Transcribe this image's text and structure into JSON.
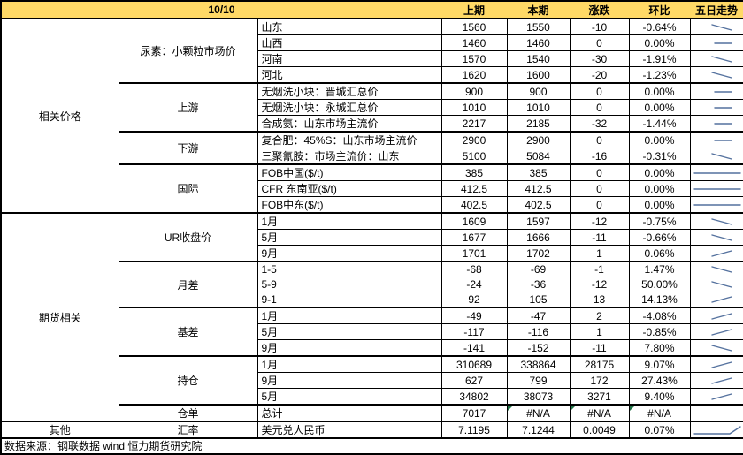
{
  "title_date": "10/10",
  "columns": [
    "上期",
    "本期",
    "涨跌",
    "环比",
    "五日走势"
  ],
  "sections": [
    {
      "label": "相关价格",
      "groups": [
        {
          "label": "尿素：小颗粒市场价",
          "rows": [
            {
              "item": "山东",
              "prev": "1560",
              "curr": "1550",
              "chg": "-10",
              "pct": "-0.64%",
              "trend": "down"
            },
            {
              "item": "山西",
              "prev": "1460",
              "curr": "1460",
              "chg": "0",
              "pct": "0.00%",
              "trend": "flat"
            },
            {
              "item": "河南",
              "prev": "1570",
              "curr": "1540",
              "chg": "-30",
              "pct": "-1.91%",
              "trend": "down"
            },
            {
              "item": "河北",
              "prev": "1620",
              "curr": "1600",
              "chg": "-20",
              "pct": "-1.23%",
              "trend": "down"
            }
          ]
        },
        {
          "label": "上游",
          "rows": [
            {
              "item": "无烟洗小块：晋城汇总价",
              "prev": "900",
              "curr": "900",
              "chg": "0",
              "pct": "0.00%",
              "trend": "flat"
            },
            {
              "item": "无烟洗小块：永城汇总价",
              "prev": "1010",
              "curr": "1010",
              "chg": "0",
              "pct": "0.00%",
              "trend": "flat"
            },
            {
              "item": "合成氨：山东市场主流价",
              "prev": "2217",
              "curr": "2185",
              "chg": "-32",
              "pct": "-1.44%",
              "trend": "flat"
            }
          ]
        },
        {
          "label": "下游",
          "rows": [
            {
              "item": "复合肥：45%S：山东市场主流价",
              "prev": "2900",
              "curr": "2900",
              "chg": "0",
              "pct": "0.00%",
              "trend": "flat"
            },
            {
              "item": "三聚氰胺：市场主流价：山东",
              "prev": "5100",
              "curr": "5084",
              "chg": "-16",
              "pct": "-0.31%",
              "trend": "down"
            }
          ]
        },
        {
          "label": "国际",
          "rows": [
            {
              "item": "FOB中国($/t)",
              "prev": "385",
              "curr": "385",
              "chg": "0",
              "pct": "0.00%",
              "trend": "flat-long"
            },
            {
              "item": "CFR 东南亚($/t)",
              "prev": "412.5",
              "curr": "412.5",
              "chg": "0",
              "pct": "0.00%",
              "trend": "flat-long"
            },
            {
              "item": "FOB中东($/t)",
              "prev": "402.5",
              "curr": "402.5",
              "chg": "0",
              "pct": "0.00%",
              "trend": "flat-long"
            }
          ]
        }
      ]
    },
    {
      "label": "期货相关",
      "groups": [
        {
          "label": "UR收盘价",
          "rows": [
            {
              "item": "1月",
              "prev": "1609",
              "curr": "1597",
              "chg": "-12",
              "pct": "-0.75%",
              "trend": "down"
            },
            {
              "item": "5月",
              "prev": "1677",
              "curr": "1666",
              "chg": "-11",
              "pct": "-0.66%",
              "trend": "down"
            },
            {
              "item": "9月",
              "prev": "1701",
              "curr": "1702",
              "chg": "1",
              "pct": "0.06%",
              "trend": "up"
            }
          ]
        },
        {
          "label": "月差",
          "rows": [
            {
              "item": "1-5",
              "prev": "-68",
              "curr": "-69",
              "chg": "-1",
              "pct": "1.47%",
              "trend": "down"
            },
            {
              "item": "5-9",
              "prev": "-24",
              "curr": "-36",
              "chg": "-12",
              "pct": "50.00%",
              "trend": "down"
            },
            {
              "item": "9-1",
              "prev": "92",
              "curr": "105",
              "chg": "13",
              "pct": "14.13%",
              "trend": "up"
            }
          ]
        },
        {
          "label": "基差",
          "rows": [
            {
              "item": "1月",
              "prev": "-49",
              "curr": "-47",
              "chg": "2",
              "pct": "-4.08%",
              "trend": "up"
            },
            {
              "item": "5月",
              "prev": "-117",
              "curr": "-116",
              "chg": "1",
              "pct": "-0.85%",
              "trend": "up"
            },
            {
              "item": "9月",
              "prev": "-141",
              "curr": "-152",
              "chg": "-11",
              "pct": "7.80%",
              "trend": "down"
            }
          ]
        },
        {
          "label": "持仓",
          "rows": [
            {
              "item": "1月",
              "prev": "310689",
              "curr": "338864",
              "chg": "28175",
              "pct": "9.07%",
              "trend": "up"
            },
            {
              "item": "9月",
              "prev": "627",
              "curr": "799",
              "chg": "172",
              "pct": "27.43%",
              "trend": "up"
            },
            {
              "item": "5月",
              "prev": "34802",
              "curr": "38073",
              "chg": "3271",
              "pct": "9.40%",
              "trend": "up"
            }
          ]
        },
        {
          "label": "仓单",
          "rows": [
            {
              "item": "总计",
              "prev": "7017",
              "curr": "#N/A",
              "chg": "#N/A",
              "pct": "#N/A",
              "trend": "none"
            }
          ]
        }
      ]
    },
    {
      "label": "其他",
      "groups": [
        {
          "label": "汇率",
          "rows": [
            {
              "item": "美元兑人民币",
              "prev": "7.1195",
              "curr": "7.1244",
              "chg": "0.0049",
              "pct": "0.07%",
              "trend": "flat-up"
            }
          ]
        }
      ]
    }
  ],
  "footer": {
    "source": "数据来源：钢联数据 wind 恒力期货研究院"
  },
  "colors": {
    "header_bg": "#FFD966",
    "sparkline": "#54719e",
    "na_marker": "#217346",
    "border": "#000000"
  }
}
